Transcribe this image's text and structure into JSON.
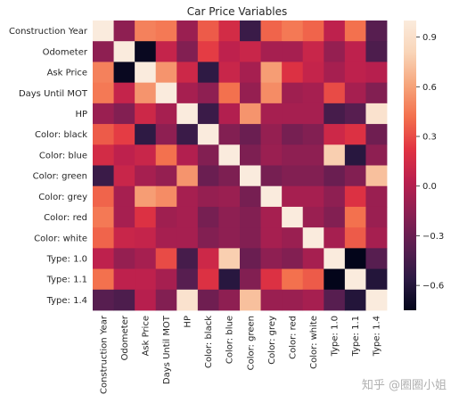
{
  "chart_data": {
    "type": "heatmap",
    "title": "Car Price Variables",
    "labels": [
      "Construction Year",
      "Odometer",
      "Ask Price",
      "Days Until MOT",
      "HP",
      "Color: black",
      "Color: blue",
      "Color: green",
      "Color: grey",
      "Color: red",
      "Color: white",
      "Type: 1.0",
      "Type: 1.1",
      "Type: 1.4"
    ],
    "matrix": [
      [
        1.0,
        -0.15,
        0.48,
        0.45,
        -0.1,
        0.35,
        0.15,
        -0.5,
        0.38,
        0.45,
        0.38,
        0.05,
        0.42,
        -0.38
      ],
      [
        -0.15,
        1.0,
        -0.72,
        0.08,
        -0.2,
        0.25,
        0.05,
        0.1,
        -0.05,
        -0.05,
        0.1,
        -0.12,
        0.05,
        -0.42
      ],
      [
        0.48,
        -0.72,
        1.0,
        0.55,
        0.12,
        -0.55,
        0.1,
        -0.05,
        0.58,
        0.2,
        0.08,
        -0.05,
        0.05,
        0.02
      ],
      [
        0.45,
        0.08,
        0.55,
        1.0,
        -0.05,
        -0.15,
        0.42,
        -0.12,
        0.52,
        -0.08,
        -0.05,
        0.3,
        -0.05,
        -0.2
      ],
      [
        -0.1,
        -0.2,
        0.12,
        -0.05,
        1.0,
        -0.5,
        0.0,
        0.55,
        -0.05,
        -0.05,
        -0.05,
        -0.45,
        -0.38,
        0.92
      ],
      [
        0.35,
        0.25,
        -0.55,
        -0.15,
        -0.5,
        1.0,
        -0.2,
        -0.3,
        -0.12,
        -0.25,
        -0.2,
        0.12,
        0.2,
        -0.28
      ],
      [
        0.15,
        0.05,
        0.1,
        0.42,
        0.0,
        -0.2,
        1.0,
        -0.22,
        -0.1,
        -0.15,
        -0.15,
        0.78,
        -0.58,
        -0.15
      ],
      [
        -0.5,
        0.1,
        -0.05,
        -0.12,
        0.55,
        -0.3,
        -0.22,
        1.0,
        -0.25,
        -0.2,
        -0.2,
        -0.3,
        -0.2,
        0.72
      ],
      [
        0.38,
        -0.05,
        0.58,
        0.52,
        -0.05,
        -0.12,
        -0.1,
        -0.25,
        1.0,
        -0.05,
        -0.05,
        -0.15,
        0.2,
        -0.1
      ],
      [
        0.45,
        -0.05,
        0.2,
        -0.08,
        -0.05,
        -0.25,
        -0.15,
        -0.2,
        -0.05,
        1.0,
        -0.1,
        -0.2,
        0.42,
        -0.1
      ],
      [
        0.38,
        0.1,
        0.08,
        -0.05,
        -0.05,
        -0.2,
        -0.15,
        -0.2,
        -0.05,
        -0.1,
        1.0,
        -0.05,
        0.35,
        -0.05
      ],
      [
        0.05,
        -0.12,
        -0.05,
        0.3,
        -0.45,
        0.12,
        0.78,
        -0.3,
        -0.15,
        -0.2,
        -0.05,
        1.0,
        -0.75,
        -0.38
      ],
      [
        0.42,
        0.05,
        0.05,
        -0.05,
        -0.38,
        0.2,
        -0.58,
        -0.2,
        0.2,
        0.42,
        0.35,
        -0.75,
        1.0,
        -0.6
      ],
      [
        -0.38,
        -0.42,
        0.02,
        -0.2,
        0.92,
        -0.28,
        -0.15,
        0.72,
        -0.1,
        -0.1,
        -0.05,
        -0.38,
        -0.6,
        1.0
      ]
    ],
    "vmin": -0.75,
    "vmax": 1.0,
    "colorbar_ticks": [
      0.9,
      0.6,
      0.3,
      0.0,
      -0.3,
      -0.6
    ],
    "colorbar_tick_labels": [
      "0.9",
      "0.6",
      "0.3",
      "0.0",
      "−0.3",
      "−0.6"
    ],
    "colormap_stops": [
      "#03051a",
      "#2d1a44",
      "#5b1e51",
      "#8a1f52",
      "#b91f4e",
      "#e13342",
      "#f3704d",
      "#f6a57b",
      "#f9d5b8",
      "#faebdd"
    ],
    "grid": false,
    "legend": "colorbar-right"
  },
  "watermark": "知乎 @圈圈小姐"
}
